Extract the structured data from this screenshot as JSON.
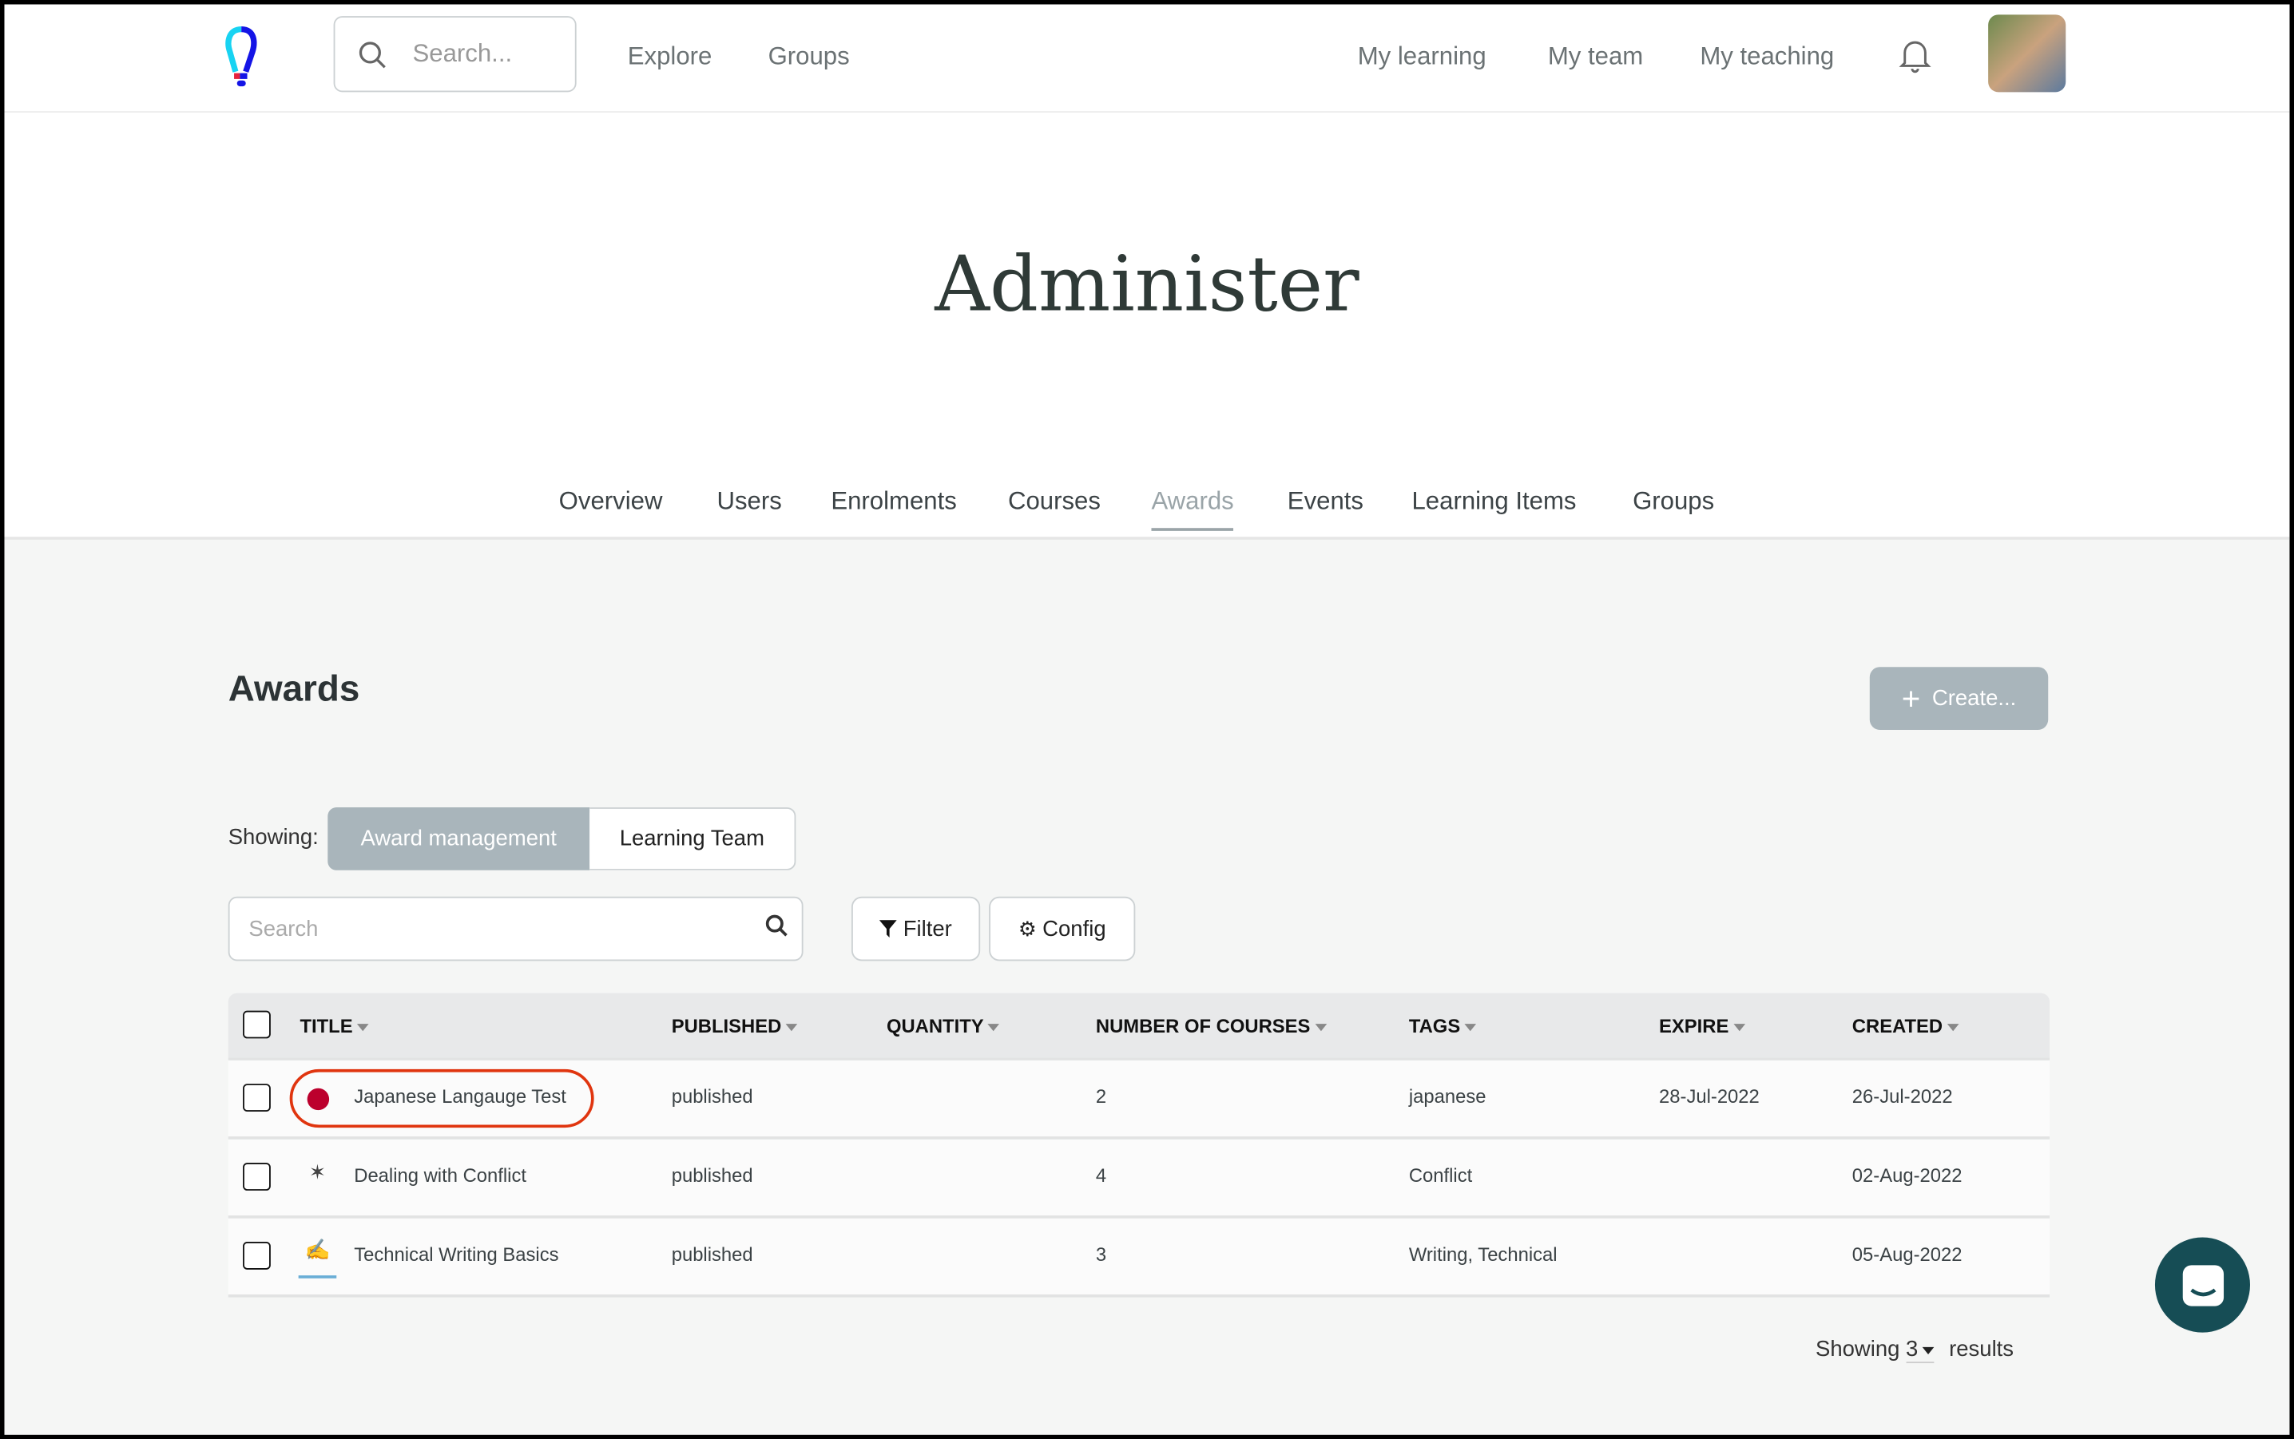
{
  "topbar": {
    "search_placeholder": "Search...",
    "nav_left": [
      "Explore",
      "Groups"
    ],
    "nav_right": [
      "My learning",
      "My team",
      "My teaching"
    ]
  },
  "page_title": "Administer",
  "tabs": [
    {
      "label": "Overview"
    },
    {
      "label": "Users"
    },
    {
      "label": "Enrolments"
    },
    {
      "label": "Courses"
    },
    {
      "label": "Awards",
      "active": true
    },
    {
      "label": "Events"
    },
    {
      "label": "Learning Items"
    },
    {
      "label": "Groups"
    }
  ],
  "section": {
    "title": "Awards",
    "create_label": "Create...",
    "showing_label": "Showing:",
    "toggle": [
      "Award management",
      "Learning Team"
    ],
    "search_placeholder": "Search",
    "filter_label": "Filter",
    "config_label": "Config"
  },
  "table": {
    "columns": [
      "TITLE",
      "PUBLISHED",
      "QUANTITY",
      "NUMBER OF COURSES",
      "TAGS",
      "EXPIRE",
      "CREATED"
    ],
    "rows": [
      {
        "title": "Japanese Langauge Test",
        "published": "published",
        "quantity": "",
        "courses": "2",
        "tags": "japanese",
        "expire": "28-Jul-2022",
        "created": "26-Jul-2022",
        "highlighted": true
      },
      {
        "title": "Dealing with Conflict",
        "published": "published",
        "quantity": "",
        "courses": "4",
        "tags": "Conflict",
        "expire": "",
        "created": "02-Aug-2022"
      },
      {
        "title": "Technical Writing Basics",
        "published": "published",
        "quantity": "",
        "courses": "3",
        "tags": "Writing, Technical",
        "expire": "",
        "created": "05-Aug-2022"
      }
    ]
  },
  "footer": {
    "showing_prefix": "Showing",
    "count": "3",
    "suffix": "results"
  },
  "colors": {
    "highlight": "#e0350f",
    "accent_disabled": "#a9b5bb",
    "chat": "#164d55"
  }
}
